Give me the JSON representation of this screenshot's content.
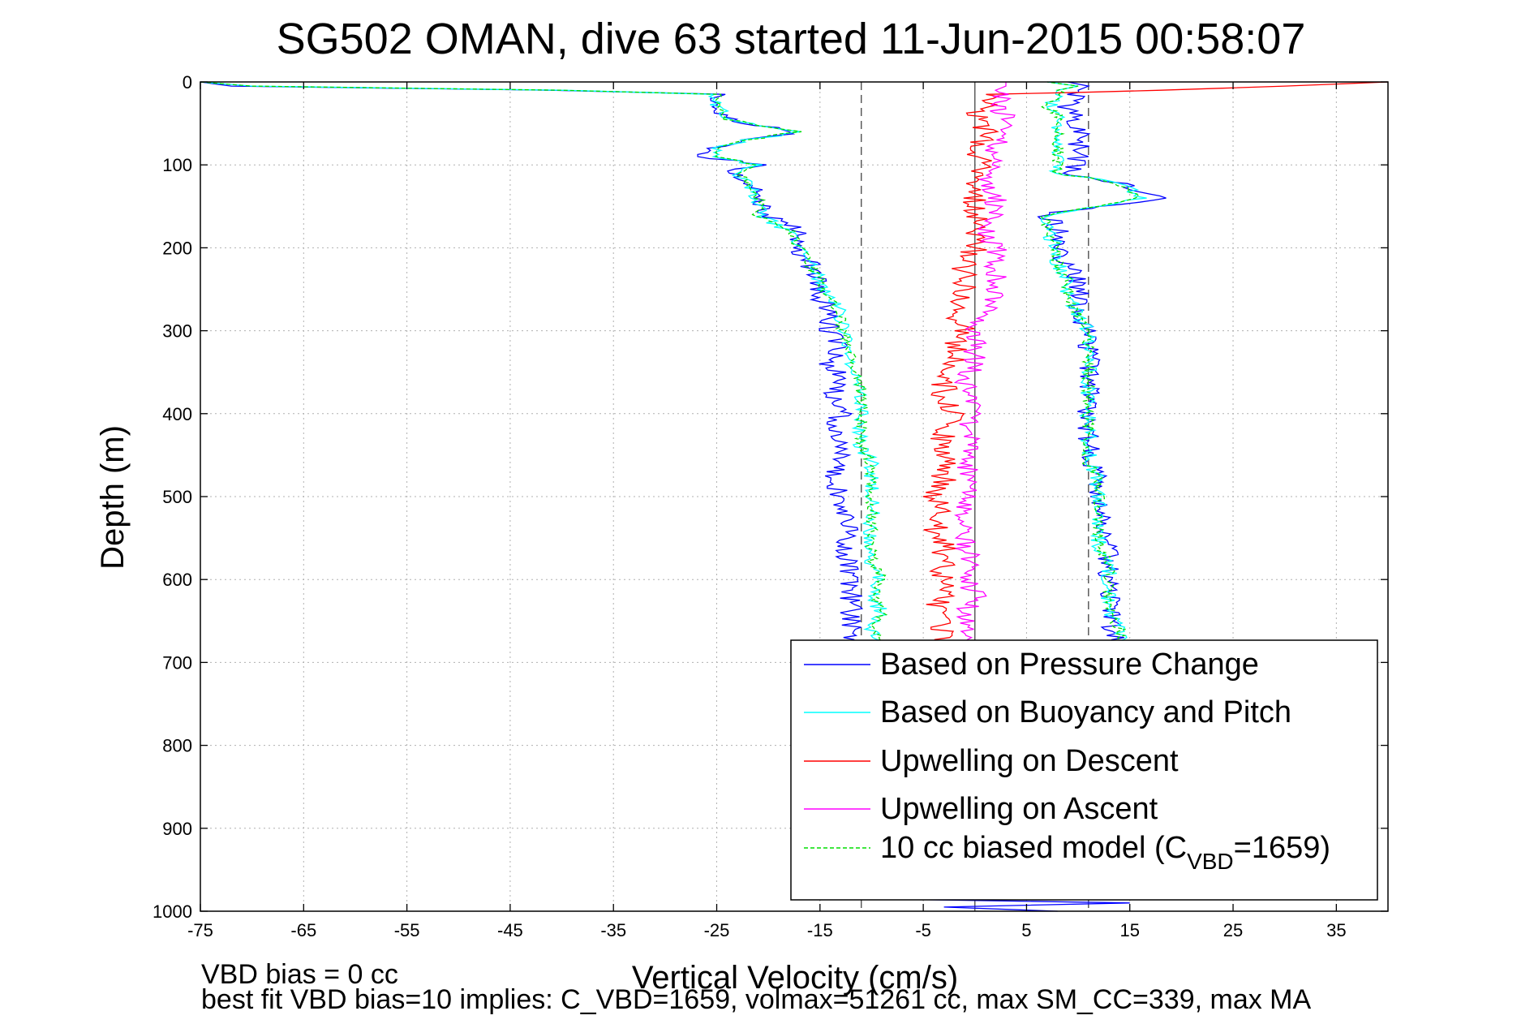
{
  "chart_data": {
    "type": "line",
    "title": "SG502 OMAN, dive 63 started 11-Jun-2015 00:58:07",
    "xlabel": "Vertical Velocity (cm/s)",
    "ylabel": "Depth (m)",
    "xlim": [
      -75,
      40
    ],
    "ylim": [
      0,
      1000
    ],
    "y_reversed": true,
    "grid": true,
    "x_ticks": [
      "-75",
      "-65",
      "-55",
      "-45",
      "-35",
      "-25",
      "-15",
      "-5",
      "5",
      "15",
      "25",
      "35"
    ],
    "x_tick_values": [
      -75,
      -65,
      -55,
      -45,
      -35,
      -25,
      -15,
      -5,
      5,
      15,
      25,
      35
    ],
    "y_ticks": [
      "0",
      "100",
      "200",
      "300",
      "400",
      "500",
      "600",
      "700",
      "800",
      "900",
      "1000"
    ],
    "y_tick_values": [
      0,
      100,
      200,
      300,
      400,
      500,
      600,
      700,
      800,
      900,
      1000
    ],
    "legend_position": "bottom-right",
    "reference_lines": [
      {
        "x": -11,
        "style": "dashed"
      },
      {
        "x": 0,
        "style": "solid"
      },
      {
        "x": 11,
        "style": "dashed"
      }
    ],
    "series": [
      {
        "name": "Based on Pressure Change",
        "color": "#0000ff",
        "style": "solid",
        "descent": {
          "depth": [
            0,
            5,
            10,
            15,
            30,
            45,
            60,
            70,
            80,
            90,
            100,
            110,
            120,
            140,
            160,
            180,
            200,
            220,
            240,
            260,
            280,
            300,
            320,
            340,
            360,
            380,
            400,
            420,
            440,
            460,
            480,
            500,
            520,
            540,
            560,
            580,
            600,
            620,
            640,
            660,
            680
          ],
          "velocity": [
            -75,
            -72,
            -41,
            -25,
            -25,
            -24,
            -17,
            -23,
            -25,
            -26,
            -21,
            -24,
            -22,
            -21,
            -20,
            -17,
            -18,
            -16,
            -15,
            -15,
            -14,
            -14,
            -13,
            -14,
            -13,
            -14,
            -13,
            -14,
            -13,
            -13,
            -14,
            -13,
            -13,
            -12,
            -13,
            -12,
            -12,
            -12,
            -12,
            -12,
            -12
          ]
        },
        "ascent": {
          "depth": [
            680,
            660,
            640,
            620,
            600,
            580,
            560,
            540,
            520,
            500,
            480,
            460,
            440,
            420,
            400,
            380,
            360,
            340,
            320,
            300,
            280,
            260,
            240,
            220,
            200,
            180,
            160,
            150,
            140,
            130,
            120,
            110,
            100,
            80,
            60,
            40,
            30,
            20,
            10,
            5,
            0
          ],
          "velocity": [
            14,
            13,
            13,
            13,
            13,
            13,
            13,
            12,
            12,
            12,
            12,
            11,
            11,
            11,
            11,
            11,
            11,
            11,
            11,
            11,
            10,
            10,
            10,
            9,
            8,
            8,
            7,
            12,
            18,
            16,
            13,
            9,
            10,
            10,
            10,
            10,
            9,
            10,
            10,
            11,
            9
          ]
        }
      },
      {
        "name": "Based on Buoyancy and Pitch",
        "color": "#00ffff",
        "style": "solid",
        "descent": {
          "depth": [
            0,
            5,
            10,
            15,
            30,
            45,
            60,
            70,
            80,
            90,
            100,
            110,
            120,
            140,
            160,
            180,
            200,
            220,
            240,
            260,
            280,
            300,
            320,
            340,
            360,
            380,
            400,
            420,
            440,
            460,
            480,
            500,
            520,
            540,
            560,
            580,
            600,
            620,
            640,
            660,
            680
          ],
          "velocity": [
            -75,
            -70,
            -40,
            -25,
            -25,
            -24,
            -17,
            -22,
            -25,
            -25,
            -21,
            -23,
            -22,
            -21,
            -21,
            -18,
            -17,
            -16,
            -15,
            -14,
            -13,
            -13,
            -12,
            -12,
            -11,
            -11,
            -11,
            -11,
            -11,
            -10,
            -10,
            -10,
            -10,
            -10,
            -10,
            -10,
            -9,
            -10,
            -9,
            -10,
            -9
          ]
        },
        "ascent": {
          "depth": [
            680,
            660,
            640,
            620,
            600,
            580,
            560,
            540,
            520,
            500,
            480,
            460,
            440,
            420,
            400,
            380,
            360,
            340,
            320,
            300,
            280,
            260,
            240,
            220,
            200,
            180,
            160,
            150,
            140,
            130,
            120,
            110,
            100,
            80,
            60,
            40,
            30,
            20,
            10,
            5,
            0
          ],
          "velocity": [
            14,
            14,
            13,
            13,
            13,
            13,
            12,
            12,
            12,
            12,
            12,
            11,
            11,
            11,
            11,
            11,
            11,
            11,
            11,
            11,
            10,
            9,
            9,
            8,
            8,
            7,
            7,
            12,
            16,
            15,
            13,
            8,
            8,
            8,
            8,
            8,
            7,
            8,
            8,
            10,
            7
          ]
        }
      },
      {
        "name": "Upwelling on Descent",
        "color": "#ff0000",
        "style": "solid",
        "descent": {
          "depth": [
            0,
            5,
            10,
            15,
            20,
            30,
            40,
            60,
            80,
            100,
            120,
            140,
            160,
            180,
            200,
            220,
            240,
            260,
            280,
            300,
            320,
            340,
            360,
            380,
            400,
            420,
            440,
            460,
            480,
            500,
            520,
            540,
            560,
            580,
            600,
            620,
            640,
            660,
            680
          ],
          "velocity": [
            40,
            30,
            18,
            1,
            2,
            1,
            0,
            1,
            0,
            1,
            0,
            0,
            0,
            0,
            0,
            -1,
            -1,
            -1,
            -2,
            -1,
            -2,
            -2,
            -3,
            -3,
            -2,
            -3,
            -3,
            -3,
            -3,
            -4,
            -3,
            -4,
            -3,
            -3,
            -3,
            -3,
            -4,
            -3,
            -3
          ]
        }
      },
      {
        "name": "Upwelling on Ascent",
        "color": "#ff00ff",
        "style": "solid",
        "ascent": {
          "depth": [
            680,
            660,
            640,
            620,
            600,
            580,
            560,
            540,
            520,
            500,
            480,
            460,
            440,
            420,
            400,
            380,
            360,
            340,
            320,
            300,
            280,
            260,
            240,
            220,
            200,
            180,
            160,
            140,
            120,
            100,
            80,
            60,
            40,
            30,
            20,
            10,
            5,
            0
          ],
          "velocity": [
            0,
            -1,
            -1,
            0,
            -1,
            0,
            -1,
            -1,
            -1,
            -1,
            0,
            -1,
            0,
            -1,
            0,
            0,
            -1,
            0,
            0,
            0,
            1,
            2,
            2,
            2,
            2,
            1,
            2,
            2,
            1,
            2,
            2,
            3,
            3,
            2,
            3,
            2,
            3,
            3
          ]
        }
      },
      {
        "name": "10 cc biased model (C_VBD=1659)",
        "color": "#00dd00",
        "style": "dashed",
        "descent": {
          "depth": [
            0,
            5,
            10,
            15,
            30,
            45,
            60,
            70,
            80,
            90,
            100,
            110,
            120,
            140,
            160,
            180,
            200,
            220,
            240,
            260,
            280,
            300,
            320,
            340,
            360,
            380,
            400,
            420,
            440,
            460,
            480,
            500,
            520,
            540,
            560,
            580,
            600,
            620,
            640,
            660,
            680
          ],
          "velocity": [
            -75,
            -70,
            -40,
            -25,
            -25,
            -24,
            -17,
            -22,
            -25,
            -25,
            -21,
            -23,
            -22,
            -21,
            -21,
            -18,
            -17,
            -16,
            -15,
            -14,
            -13,
            -13,
            -12,
            -12,
            -11,
            -11,
            -11,
            -11,
            -11,
            -10,
            -10,
            -10,
            -10,
            -10,
            -10,
            -10,
            -9,
            -10,
            -9,
            -10,
            -9
          ]
        },
        "ascent": {
          "depth": [
            680,
            660,
            640,
            620,
            600,
            580,
            560,
            540,
            520,
            500,
            480,
            460,
            440,
            420,
            400,
            380,
            360,
            340,
            320,
            300,
            280,
            260,
            240,
            220,
            200,
            180,
            160,
            150,
            140,
            130,
            120,
            110,
            100,
            80,
            60,
            40,
            30,
            20,
            10,
            5,
            0
          ],
          "velocity": [
            14,
            14,
            13,
            13,
            13,
            13,
            12,
            12,
            12,
            12,
            12,
            11,
            11,
            11,
            11,
            11,
            11,
            11,
            11,
            11,
            10,
            9,
            9,
            8,
            8,
            7,
            7,
            12,
            16,
            15,
            13,
            8,
            8,
            8,
            8,
            8,
            7,
            8,
            8,
            10,
            7
          ]
        }
      }
    ],
    "bottom_segment": {
      "depth": [
        985,
        990,
        995,
        1000
      ],
      "velocity": [
        -10,
        15,
        -3,
        8
      ]
    },
    "legend": [
      {
        "text": "Based on Pressure Change",
        "color": "#0000ff",
        "style": "solid"
      },
      {
        "text": "Based on Buoyancy and Pitch",
        "color": "#00ffff",
        "style": "solid"
      },
      {
        "text": "Upwelling on Descent",
        "color": "#ff0000",
        "style": "solid"
      },
      {
        "text": "Upwelling on Ascent",
        "color": "#ff00ff",
        "style": "solid"
      },
      {
        "text_pre": "10 cc biased model (C",
        "text_sub": "VBD",
        "text_post": "=1659)",
        "color": "#00dd00",
        "style": "dashed"
      }
    ],
    "footnotes": [
      "VBD bias = 0 cc",
      "best fit VBD bias=10 implies: C_VBD=1659, volmax=51261 cc, max SM_CC=339, max MA"
    ]
  }
}
